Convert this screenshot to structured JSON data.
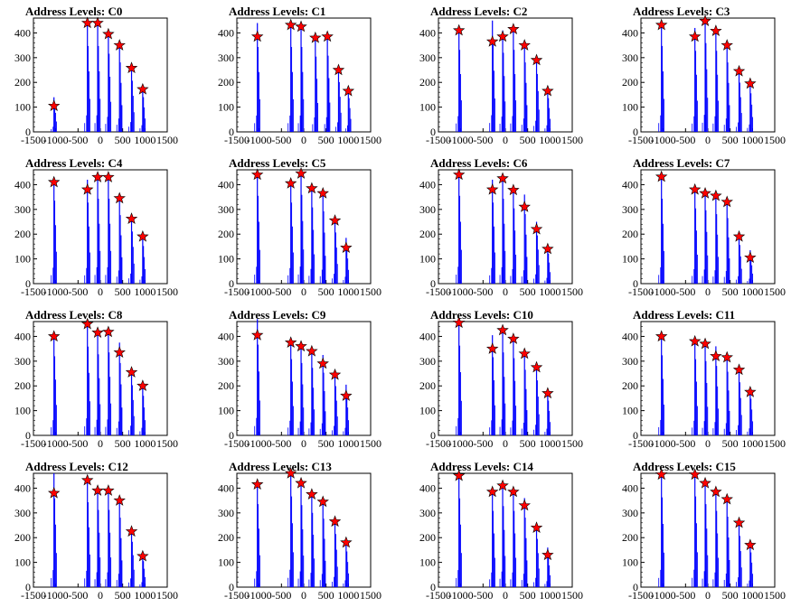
{
  "chart_data": [
    {
      "type": "histogram",
      "title": "Address Levels: C0",
      "xlim": [
        -1500,
        1500
      ],
      "ylim": [
        0,
        460
      ],
      "yticks": [
        0,
        100,
        200,
        300,
        400
      ],
      "xticks": [
        -1500,
        -1000,
        -500,
        0,
        500,
        1000,
        1500
      ],
      "peaks": [
        {
          "x": -1040,
          "hist_top": 140,
          "marker": 105
        },
        {
          "x": -290,
          "hist_top": 445,
          "marker": 440
        },
        {
          "x": -60,
          "hist_top": 445,
          "marker": 440
        },
        {
          "x": 180,
          "hist_top": 405,
          "marker": 395
        },
        {
          "x": 430,
          "hist_top": 360,
          "marker": 350
        },
        {
          "x": 700,
          "hist_top": 265,
          "marker": 258
        },
        {
          "x": 950,
          "hist_top": 180,
          "marker": 172
        }
      ]
    },
    {
      "type": "histogram",
      "title": "Address Levels: C1",
      "xlim": [
        -1500,
        1500
      ],
      "ylim": [
        0,
        460
      ],
      "yticks": [
        0,
        100,
        200,
        300,
        400
      ],
      "xticks": [
        -1500,
        -1000,
        -500,
        0,
        500,
        1000,
        1500
      ],
      "peaks": [
        {
          "x": -1040,
          "hist_top": 440,
          "marker": 385
        },
        {
          "x": -290,
          "hist_top": 440,
          "marker": 432
        },
        {
          "x": -60,
          "hist_top": 440,
          "marker": 425
        },
        {
          "x": 260,
          "hist_top": 390,
          "marker": 380
        },
        {
          "x": 530,
          "hist_top": 395,
          "marker": 385
        },
        {
          "x": 780,
          "hist_top": 258,
          "marker": 250
        },
        {
          "x": 1000,
          "hist_top": 175,
          "marker": 165
        }
      ]
    },
    {
      "type": "histogram",
      "title": "Address Levels: C2",
      "xlim": [
        -1500,
        1500
      ],
      "ylim": [
        0,
        460
      ],
      "yticks": [
        0,
        100,
        200,
        300,
        400
      ],
      "xticks": [
        -1500,
        -1000,
        -500,
        0,
        500,
        1000,
        1500
      ],
      "peaks": [
        {
          "x": -1040,
          "hist_top": 425,
          "marker": 410
        },
        {
          "x": -290,
          "hist_top": 450,
          "marker": 365
        },
        {
          "x": -60,
          "hist_top": 410,
          "marker": 385
        },
        {
          "x": 180,
          "hist_top": 425,
          "marker": 415
        },
        {
          "x": 430,
          "hist_top": 360,
          "marker": 350
        },
        {
          "x": 700,
          "hist_top": 300,
          "marker": 290
        },
        {
          "x": 950,
          "hist_top": 175,
          "marker": 165
        }
      ]
    },
    {
      "type": "histogram",
      "title": "Address Levels: C3",
      "xlim": [
        -1500,
        1500
      ],
      "ylim": [
        0,
        460
      ],
      "yticks": [
        0,
        100,
        200,
        300,
        400
      ],
      "xticks": [
        -1500,
        -1000,
        -500,
        0,
        500,
        1000,
        1500
      ],
      "peaks": [
        {
          "x": -1040,
          "hist_top": 445,
          "marker": 432
        },
        {
          "x": -290,
          "hist_top": 420,
          "marker": 385
        },
        {
          "x": -60,
          "hist_top": 460,
          "marker": 448
        },
        {
          "x": 180,
          "hist_top": 420,
          "marker": 408
        },
        {
          "x": 430,
          "hist_top": 360,
          "marker": 350
        },
        {
          "x": 700,
          "hist_top": 255,
          "marker": 245
        },
        {
          "x": 950,
          "hist_top": 200,
          "marker": 195
        }
      ]
    },
    {
      "type": "histogram",
      "title": "Address Levels: C4",
      "xlim": [
        -1500,
        1500
      ],
      "ylim": [
        0,
        460
      ],
      "yticks": [
        0,
        100,
        200,
        300,
        400
      ],
      "xticks": [
        -1500,
        -1000,
        -500,
        0,
        500,
        1000,
        1500
      ],
      "peaks": [
        {
          "x": -1040,
          "hist_top": 430,
          "marker": 410
        },
        {
          "x": -290,
          "hist_top": 420,
          "marker": 380
        },
        {
          "x": -60,
          "hist_top": 440,
          "marker": 430
        },
        {
          "x": 180,
          "hist_top": 440,
          "marker": 430
        },
        {
          "x": 430,
          "hist_top": 355,
          "marker": 345
        },
        {
          "x": 700,
          "hist_top": 270,
          "marker": 262
        },
        {
          "x": 950,
          "hist_top": 195,
          "marker": 190
        }
      ]
    },
    {
      "type": "histogram",
      "title": "Address Levels: C5",
      "xlim": [
        -1500,
        1500
      ],
      "ylim": [
        0,
        460
      ],
      "yticks": [
        0,
        100,
        200,
        300,
        400
      ],
      "xticks": [
        -1500,
        -1000,
        -500,
        0,
        500,
        1000,
        1500
      ],
      "peaks": [
        {
          "x": -1040,
          "hist_top": 455,
          "marker": 440
        },
        {
          "x": -290,
          "hist_top": 420,
          "marker": 405
        },
        {
          "x": -60,
          "hist_top": 460,
          "marker": 445
        },
        {
          "x": 180,
          "hist_top": 395,
          "marker": 385
        },
        {
          "x": 430,
          "hist_top": 375,
          "marker": 365
        },
        {
          "x": 700,
          "hist_top": 265,
          "marker": 255
        },
        {
          "x": 950,
          "hist_top": 185,
          "marker": 145
        }
      ]
    },
    {
      "type": "histogram",
      "title": "Address Levels: C6",
      "xlim": [
        -1500,
        1500
      ],
      "ylim": [
        0,
        460
      ],
      "yticks": [
        0,
        100,
        200,
        300,
        400
      ],
      "xticks": [
        -1500,
        -1000,
        -500,
        0,
        500,
        1000,
        1500
      ],
      "peaks": [
        {
          "x": -1040,
          "hist_top": 455,
          "marker": 440
        },
        {
          "x": -290,
          "hist_top": 420,
          "marker": 380
        },
        {
          "x": -60,
          "hist_top": 440,
          "marker": 425
        },
        {
          "x": 180,
          "hist_top": 390,
          "marker": 378
        },
        {
          "x": 430,
          "hist_top": 360,
          "marker": 310
        },
        {
          "x": 700,
          "hist_top": 250,
          "marker": 220
        },
        {
          "x": 950,
          "hist_top": 155,
          "marker": 140
        }
      ]
    },
    {
      "type": "histogram",
      "title": "Address Levels: C7",
      "xlim": [
        -1500,
        1500
      ],
      "ylim": [
        0,
        460
      ],
      "yticks": [
        0,
        100,
        200,
        300,
        400
      ],
      "xticks": [
        -1500,
        -1000,
        -500,
        0,
        500,
        1000,
        1500
      ],
      "peaks": [
        {
          "x": -1040,
          "hist_top": 440,
          "marker": 432
        },
        {
          "x": -290,
          "hist_top": 390,
          "marker": 380
        },
        {
          "x": -60,
          "hist_top": 380,
          "marker": 365
        },
        {
          "x": 180,
          "hist_top": 360,
          "marker": 355
        },
        {
          "x": 430,
          "hist_top": 340,
          "marker": 330
        },
        {
          "x": 700,
          "hist_top": 200,
          "marker": 190
        },
        {
          "x": 950,
          "hist_top": 135,
          "marker": 105
        }
      ]
    },
    {
      "type": "histogram",
      "title": "Address Levels: C8",
      "xlim": [
        -1500,
        1500
      ],
      "ylim": [
        0,
        460
      ],
      "yticks": [
        0,
        100,
        200,
        300,
        400
      ],
      "xticks": [
        -1500,
        -1000,
        -500,
        0,
        500,
        1000,
        1500
      ],
      "peaks": [
        {
          "x": -1040,
          "hist_top": 410,
          "marker": 400
        },
        {
          "x": -290,
          "hist_top": 460,
          "marker": 450
        },
        {
          "x": -60,
          "hist_top": 420,
          "marker": 415
        },
        {
          "x": 180,
          "hist_top": 430,
          "marker": 418
        },
        {
          "x": 430,
          "hist_top": 375,
          "marker": 335
        },
        {
          "x": 700,
          "hist_top": 260,
          "marker": 255
        },
        {
          "x": 950,
          "hist_top": 205,
          "marker": 200
        }
      ]
    },
    {
      "type": "histogram",
      "title": "Address Levels: C9",
      "xlim": [
        -1500,
        1500
      ],
      "ylim": [
        0,
        460
      ],
      "yticks": [
        0,
        100,
        200,
        300,
        400
      ],
      "xticks": [
        -1500,
        -1000,
        -500,
        0,
        500,
        1000,
        1500
      ],
      "peaks": [
        {
          "x": -1040,
          "hist_top": 470,
          "marker": 405
        },
        {
          "x": -290,
          "hist_top": 395,
          "marker": 375
        },
        {
          "x": -60,
          "hist_top": 375,
          "marker": 360
        },
        {
          "x": 180,
          "hist_top": 350,
          "marker": 340
        },
        {
          "x": 430,
          "hist_top": 325,
          "marker": 290
        },
        {
          "x": 700,
          "hist_top": 255,
          "marker": 245
        },
        {
          "x": 950,
          "hist_top": 205,
          "marker": 160
        }
      ]
    },
    {
      "type": "histogram",
      "title": "Address Levels: C10",
      "xlim": [
        -1500,
        1500
      ],
      "ylim": [
        0,
        460
      ],
      "yticks": [
        0,
        100,
        200,
        300,
        400
      ],
      "xticks": [
        -1500,
        -1000,
        -500,
        0,
        500,
        1000,
        1500
      ],
      "peaks": [
        {
          "x": -1040,
          "hist_top": 465,
          "marker": 455
        },
        {
          "x": -290,
          "hist_top": 405,
          "marker": 350
        },
        {
          "x": -60,
          "hist_top": 430,
          "marker": 425
        },
        {
          "x": 180,
          "hist_top": 400,
          "marker": 390
        },
        {
          "x": 430,
          "hist_top": 340,
          "marker": 330
        },
        {
          "x": 700,
          "hist_top": 285,
          "marker": 275
        },
        {
          "x": 950,
          "hist_top": 180,
          "marker": 170
        }
      ]
    },
    {
      "type": "histogram",
      "title": "Address Levels: C11",
      "xlim": [
        -1500,
        1500
      ],
      "ylim": [
        0,
        460
      ],
      "yticks": [
        0,
        100,
        200,
        300,
        400
      ],
      "xticks": [
        -1500,
        -1000,
        -500,
        0,
        500,
        1000,
        1500
      ],
      "peaks": [
        {
          "x": -1040,
          "hist_top": 415,
          "marker": 400
        },
        {
          "x": -290,
          "hist_top": 395,
          "marker": 380
        },
        {
          "x": -60,
          "hist_top": 385,
          "marker": 370
        },
        {
          "x": 180,
          "hist_top": 360,
          "marker": 320
        },
        {
          "x": 430,
          "hist_top": 330,
          "marker": 315
        },
        {
          "x": 700,
          "hist_top": 275,
          "marker": 265
        },
        {
          "x": 950,
          "hist_top": 190,
          "marker": 175
        }
      ]
    },
    {
      "type": "histogram",
      "title": "Address Levels: C12",
      "xlim": [
        -1500,
        1500
      ],
      "ylim": [
        0,
        460
      ],
      "yticks": [
        0,
        100,
        200,
        300,
        400
      ],
      "xticks": [
        -1500,
        -1000,
        -500,
        0,
        500,
        1000,
        1500
      ],
      "peaks": [
        {
          "x": -1040,
          "hist_top": 460,
          "marker": 380
        },
        {
          "x": -290,
          "hist_top": 440,
          "marker": 432
        },
        {
          "x": -60,
          "hist_top": 400,
          "marker": 390
        },
        {
          "x": 180,
          "hist_top": 400,
          "marker": 390
        },
        {
          "x": 430,
          "hist_top": 360,
          "marker": 350
        },
        {
          "x": 700,
          "hist_top": 235,
          "marker": 225
        },
        {
          "x": 950,
          "hist_top": 135,
          "marker": 125
        }
      ]
    },
    {
      "type": "histogram",
      "title": "Address Levels: C13",
      "xlim": [
        -1500,
        1500
      ],
      "ylim": [
        0,
        460
      ],
      "yticks": [
        0,
        100,
        200,
        300,
        400
      ],
      "xticks": [
        -1500,
        -1000,
        -500,
        0,
        500,
        1000,
        1500
      ],
      "peaks": [
        {
          "x": -1040,
          "hist_top": 430,
          "marker": 415
        },
        {
          "x": -290,
          "hist_top": 470,
          "marker": 460
        },
        {
          "x": -60,
          "hist_top": 425,
          "marker": 420
        },
        {
          "x": 180,
          "hist_top": 385,
          "marker": 375
        },
        {
          "x": 430,
          "hist_top": 355,
          "marker": 345
        },
        {
          "x": 700,
          "hist_top": 275,
          "marker": 265
        },
        {
          "x": 950,
          "hist_top": 185,
          "marker": 180
        }
      ]
    },
    {
      "type": "histogram",
      "title": "Address Levels: C14",
      "xlim": [
        -1500,
        1500
      ],
      "ylim": [
        0,
        460
      ],
      "yticks": [
        0,
        100,
        200,
        300,
        400
      ],
      "xticks": [
        -1500,
        -1000,
        -500,
        0,
        500,
        1000,
        1500
      ],
      "peaks": [
        {
          "x": -1040,
          "hist_top": 460,
          "marker": 450
        },
        {
          "x": -290,
          "hist_top": 395,
          "marker": 385
        },
        {
          "x": -60,
          "hist_top": 420,
          "marker": 410
        },
        {
          "x": 180,
          "hist_top": 395,
          "marker": 385
        },
        {
          "x": 430,
          "hist_top": 360,
          "marker": 330
        },
        {
          "x": 700,
          "hist_top": 250,
          "marker": 240
        },
        {
          "x": 950,
          "hist_top": 160,
          "marker": 130
        }
      ]
    },
    {
      "type": "histogram",
      "title": "Address Levels: C15",
      "xlim": [
        -1500,
        1500
      ],
      "ylim": [
        0,
        460
      ],
      "yticks": [
        0,
        100,
        200,
        300,
        400
      ],
      "xticks": [
        -1500,
        -1000,
        -500,
        0,
        500,
        1000,
        1500
      ],
      "peaks": [
        {
          "x": -1040,
          "hist_top": 465,
          "marker": 455
        },
        {
          "x": -290,
          "hist_top": 470,
          "marker": 455
        },
        {
          "x": -60,
          "hist_top": 430,
          "marker": 420
        },
        {
          "x": 180,
          "hist_top": 395,
          "marker": 385
        },
        {
          "x": 430,
          "hist_top": 365,
          "marker": 355
        },
        {
          "x": 700,
          "hist_top": 265,
          "marker": 260
        },
        {
          "x": 950,
          "hist_top": 180,
          "marker": 170
        }
      ]
    }
  ],
  "style": {
    "histogram_color": "#0000ff",
    "marker_color": "#ff0000",
    "marker_stroke": "#000000",
    "axis_color": "#000000",
    "background": "#ffffff"
  }
}
